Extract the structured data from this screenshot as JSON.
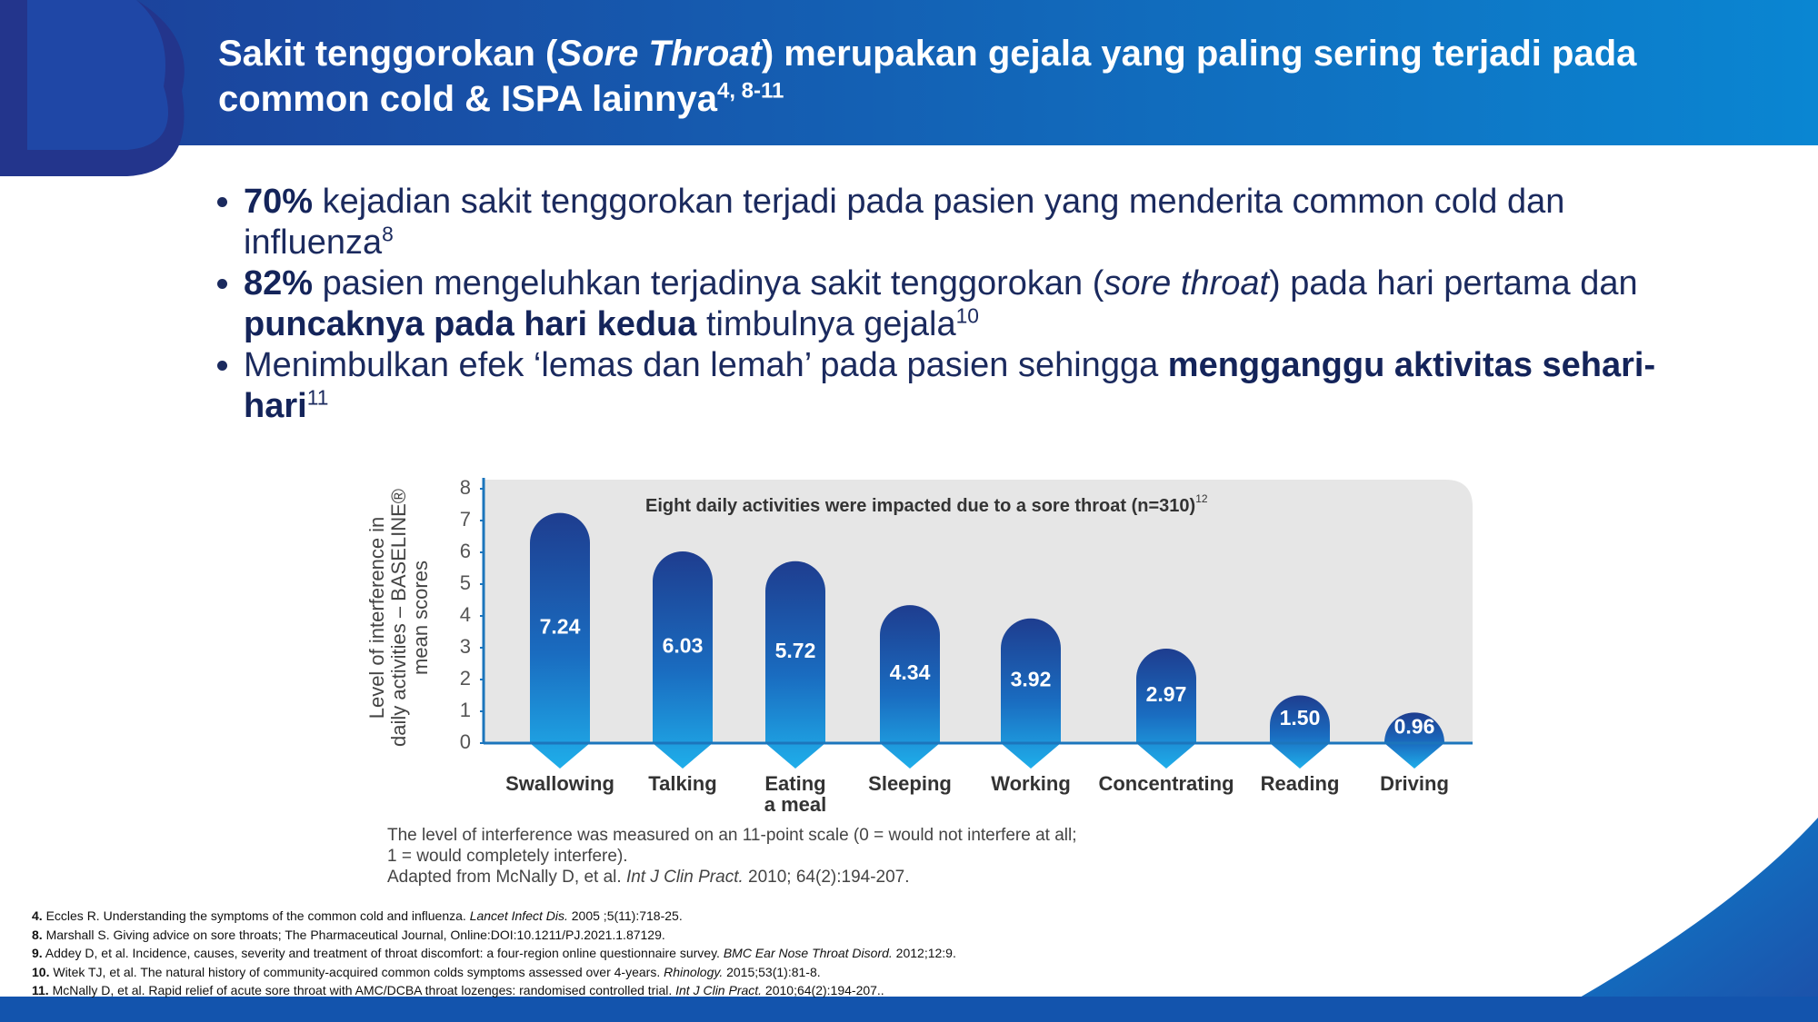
{
  "header": {
    "title": [
      {
        "text": "Sakit tenggorokan ("
      },
      {
        "text": "Sore Throat",
        "style": "italic"
      },
      {
        "text": ") merupakan gejala yang paling sering terjadi pada common cold & ISPA lainnya"
      },
      {
        "text": "4, 8-11",
        "style": "sup"
      }
    ]
  },
  "bullets": [
    [
      {
        "text": "70%",
        "style": "bold"
      },
      {
        "text": " kejadian sakit tenggorokan terjadi pada pasien yang menderita common cold dan influenza"
      },
      {
        "text": "8",
        "style": "sup"
      }
    ],
    [
      {
        "text": "82%",
        "style": "bold"
      },
      {
        "text": " pasien mengeluhkan terjadinya sakit tenggorokan ("
      },
      {
        "text": "sore throat",
        "style": "italic"
      },
      {
        "text": ") pada hari pertama dan "
      },
      {
        "text": "puncaknya pada hari kedua",
        "style": "bold"
      },
      {
        "text": " timbulnya gejala"
      },
      {
        "text": "10",
        "style": "sup"
      }
    ],
    [
      {
        "text": "Menimbulkan efek ‘lemas dan lemah’ pada pasien sehingga "
      },
      {
        "text": "mengganggu aktivitas sehari-hari",
        "style": "bold"
      },
      {
        "text": "11",
        "style": "sup"
      }
    ]
  ],
  "chart_data": {
    "type": "bar",
    "title": "Eight daily activities were impacted due to a sore throat (n=310)",
    "title_sup": "12",
    "ylabel": [
      "Level of interference in",
      "daily activities – BASELINE®",
      "mean scores"
    ],
    "categories": [
      "Swallowing",
      "Talking",
      "Eating\na meal",
      "Sleeping",
      "Working",
      "Concentrating",
      "Reading",
      "Driving"
    ],
    "values": [
      7.24,
      6.03,
      5.72,
      4.34,
      3.92,
      2.97,
      1.5,
      0.96
    ],
    "value_labels": [
      "7.24",
      "6.03",
      "5.72",
      "4.34",
      "3.92",
      "2.97",
      "1.50",
      "0.96"
    ],
    "ylim": [
      0,
      8
    ],
    "yticks": [
      0,
      1,
      2,
      3,
      4,
      5,
      6,
      7,
      8
    ],
    "color": "#1e3d8f",
    "caption": [
      [
        {
          "text": "The level of interference was measured on an 11-point scale (0 = would not interfere at all;"
        }
      ],
      [
        {
          "text": "1 = would completely interfere)."
        }
      ],
      [
        {
          "text": "Adapted from McNally D, et al. "
        },
        {
          "text": "Int J Clin Pract.",
          "style": "italic"
        },
        {
          "text": " 2010; 64(2):194-207."
        }
      ]
    ]
  },
  "footnotes": [
    [
      {
        "text": "4.",
        "style": "bold"
      },
      {
        "text": " Eccles R. Understanding the symptoms of the common cold and influenza. "
      },
      {
        "text": "Lancet Infect Dis.",
        "style": "italic"
      },
      {
        "text": " 2005 ;5(11):718-25."
      }
    ],
    [
      {
        "text": "8.",
        "style": "bold"
      },
      {
        "text": " Marshall S. Giving advice on sore throats; The Pharmaceutical Journal, Online:DOI:10.1211/PJ.2021.1.87129."
      }
    ],
    [
      {
        "text": "9.",
        "style": "bold"
      },
      {
        "text": " Addey D, et al. Incidence, causes, severity and treatment of throat discomfort: a four-region online questionnaire survey. "
      },
      {
        "text": "BMC Ear Nose Throat Disord.",
        "style": "italic"
      },
      {
        "text": " 2012;12:9."
      }
    ],
    [
      {
        "text": "10.",
        "style": "bold"
      },
      {
        "text": " Witek TJ, et al. The natural history of community-acquired common colds symptoms assessed over 4-years. "
      },
      {
        "text": "Rhinology.",
        "style": "italic"
      },
      {
        "text": " 2015;53(1):81-8."
      }
    ],
    [
      {
        "text": "11.",
        "style": "bold"
      },
      {
        "text": " McNally D, et al. Rapid relief of acute sore throat with AMC/DCBA throat lozenges: randomised controlled trial. "
      },
      {
        "text": "Int J Clin Pract.",
        "style": "italic"
      },
      {
        "text": " 2010;64(2):194-207.."
      }
    ]
  ]
}
